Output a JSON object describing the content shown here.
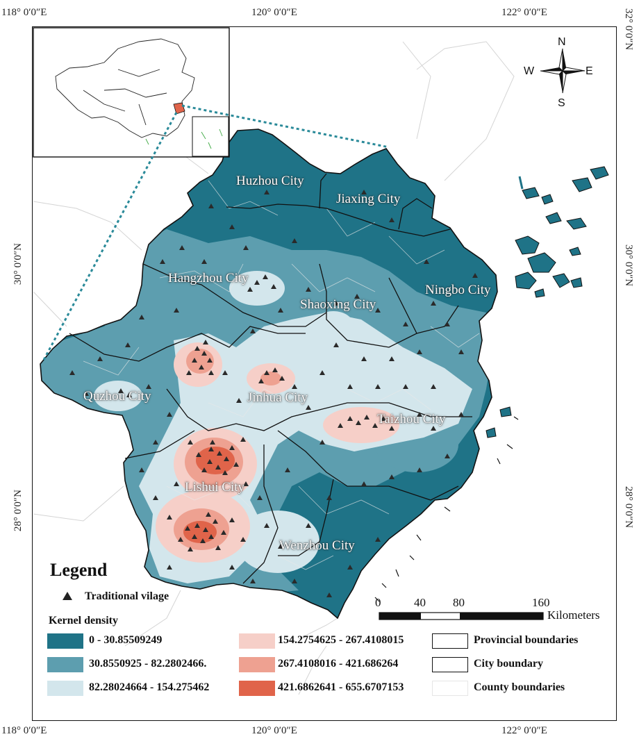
{
  "graticule": {
    "top": [
      "118° 0′0″E",
      "120° 0′0″E",
      "122° 0′0″E"
    ],
    "bottom": [
      "118° 0′0″E",
      "120° 0′0″E",
      "122° 0′0″E"
    ],
    "left": [
      "30° 0′0″N",
      "28° 0′0″N"
    ],
    "right": [
      "32° 0′0″N",
      "30° 0′0″N",
      "28° 0′0″N"
    ]
  },
  "cities": [
    "Huzhou City",
    "Jiaxing City",
    "Hangzhou City",
    "Shaoxing City",
    "Ningbo City",
    "Quzhou City",
    "Jinhua City",
    "Taizhou City",
    "Lishui City",
    "Wenzhou City"
  ],
  "compass": {
    "n": "N",
    "s": "S",
    "e": "E",
    "w": "W"
  },
  "scale_bar": {
    "ticks": [
      "0",
      "40",
      "80",
      "160"
    ],
    "unit": "Kilometers"
  },
  "legend": {
    "title": "Legend",
    "point_label": "Traditional vilage",
    "density_title": "Kernel density",
    "classes": [
      {
        "label": "0 - 30.85509249",
        "color": "#1f7387"
      },
      {
        "label": "30.8550925 - 82.2802466.",
        "color": "#5d9eaf"
      },
      {
        "label": "82.28024664 - 154.275462",
        "color": "#d3e6ec"
      },
      {
        "label": "154.2754625 - 267.4108015",
        "color": "#f6cfc8"
      },
      {
        "label": "267.4108016 - 421.686264",
        "color": "#eea191"
      },
      {
        "label": "421.6862641 - 655.6707153",
        "color": "#e0644a"
      }
    ],
    "boundaries": [
      "Provincial boundaries",
      "City boundary",
      "County boundaries"
    ]
  }
}
